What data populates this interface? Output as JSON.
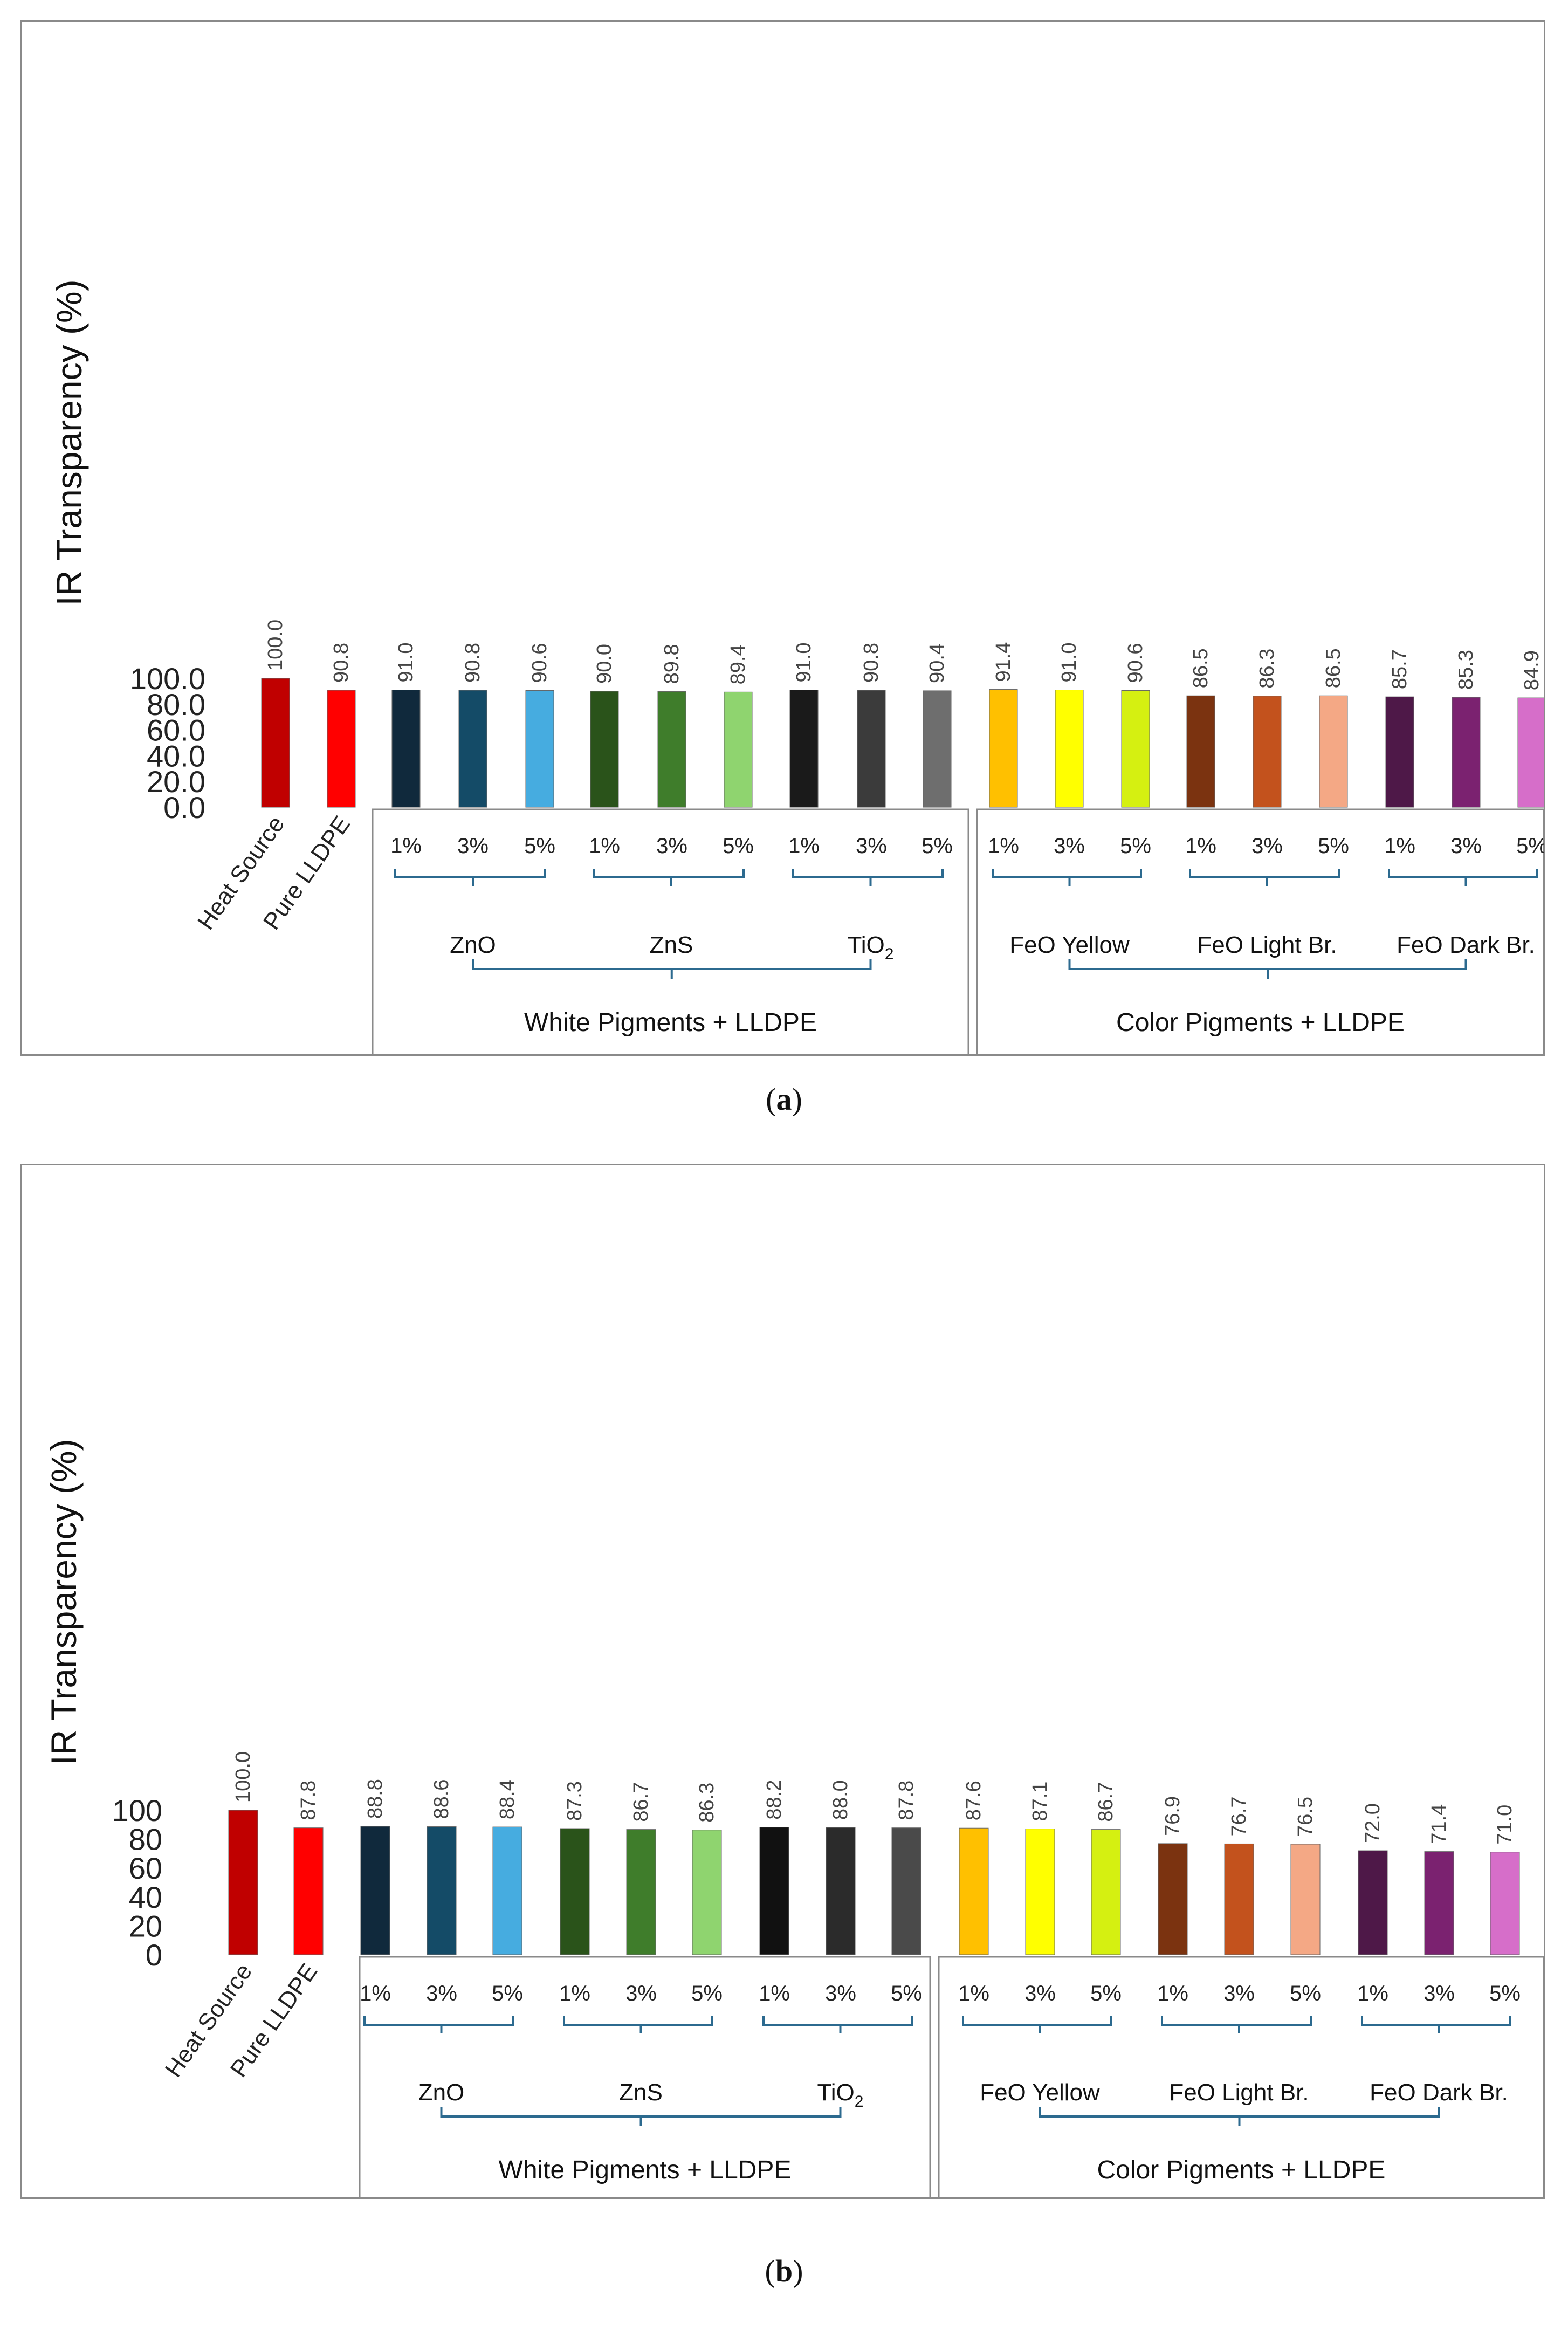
{
  "captions": {
    "a": "a",
    "b": "b"
  },
  "chart_data": [
    {
      "id": "a",
      "type": "bar",
      "ylabel": "IR Transparency (%)",
      "ylim": [
        0,
        100
      ],
      "yticks": [
        0,
        20,
        40,
        60,
        80,
        100
      ],
      "ytick_labels": [
        "0.0",
        "20.0",
        "40.0",
        "60.0",
        "80.0",
        "100.0"
      ],
      "value_format": "fixed1",
      "categories": [
        "Heat Source",
        "Pure LLDPE",
        "ZnO 1%",
        "ZnO 3%",
        "ZnO 5%",
        "ZnS 1%",
        "ZnS 3%",
        "ZnS 5%",
        "TiO2 1%",
        "TiO2 3%",
        "TiO2 5%",
        "FeO Yellow 1%",
        "FeO Yellow 3%",
        "FeO Yellow 5%",
        "FeO Light Br. 1%",
        "FeO Light Br. 3%",
        "FeO Light Br. 5%",
        "FeO Dark Br. 1%",
        "FeO Dark Br. 3%",
        "FeO Dark Br. 5%"
      ],
      "values": [
        100.0,
        90.8,
        91.0,
        90.8,
        90.6,
        90.0,
        89.8,
        89.4,
        91.0,
        90.8,
        90.4,
        91.4,
        91.0,
        90.6,
        86.5,
        86.3,
        86.5,
        85.7,
        85.3,
        84.9
      ],
      "colors": [
        "#c00000",
        "#ff0000",
        "#10293c",
        "#144b67",
        "#46ace0",
        "#2a531a",
        "#3f7d2b",
        "#8fd46f",
        "#1a1a1a",
        "#3b3b3b",
        "#6e6e6e",
        "#ffc000",
        "#ffff00",
        "#d5f011",
        "#7b3310",
        "#c3521d",
        "#f4a885",
        "#4e1848",
        "#7b2270",
        "#d66ec9"
      ],
      "rotated_labels": [
        "Heat Source",
        "Pure LLDPE"
      ],
      "percent_labels": [
        "1%",
        "3%",
        "5%"
      ],
      "groups": [
        {
          "name": "ZnO",
          "sup": "",
          "start": 2
        },
        {
          "name": "ZnS",
          "sup": "",
          "start": 5
        },
        {
          "name": "TiO",
          "sup": "2",
          "start": 8
        },
        {
          "name": "FeO Yellow",
          "sup": "",
          "start": 11
        },
        {
          "name": "FeO Light Br.",
          "sup": "",
          "start": 14
        },
        {
          "name": "FeO Dark Br.",
          "sup": "",
          "start": 17
        }
      ],
      "supergroups": [
        {
          "name": "White Pigments + LLDPE",
          "start": 2,
          "end": 10
        },
        {
          "name": "Color Pigments + LLDPE",
          "start": 11,
          "end": 19
        }
      ]
    },
    {
      "id": "b",
      "type": "bar",
      "ylabel": "IR Transparency (%)",
      "ylim": [
        0,
        100
      ],
      "yticks": [
        0,
        20,
        40,
        60,
        80,
        100
      ],
      "ytick_labels": [
        "0",
        "20",
        "40",
        "60",
        "80",
        "100"
      ],
      "value_format": "fixed1",
      "categories": [
        "Heat Source",
        "Pure LLDPE",
        "ZnO 1%",
        "ZnO 3%",
        "ZnO 5%",
        "ZnS 1%",
        "ZnS 3%",
        "ZnS 5%",
        "TiO2 1%",
        "TiO2 3%",
        "TiO2 5%",
        "FeO Yellow 1%",
        "FeO Yellow 3%",
        "FeO Yellow 5%",
        "FeO Light Br. 1%",
        "FeO Light Br. 3%",
        "FeO Light Br. 5%",
        "FeO Dark Br. 1%",
        "FeO Dark Br. 3%",
        "FeO Dark Br. 5%"
      ],
      "values": [
        100.0,
        87.8,
        88.8,
        88.6,
        88.4,
        87.3,
        86.7,
        86.3,
        88.2,
        88.0,
        87.8,
        87.6,
        87.1,
        86.7,
        76.9,
        76.7,
        76.5,
        72.0,
        71.4,
        71.0
      ],
      "colors": [
        "#c00000",
        "#ff0000",
        "#10293c",
        "#144b67",
        "#46ace0",
        "#2a531a",
        "#3f7d2b",
        "#8fd46f",
        "#111111",
        "#2b2b2b",
        "#4a4a4a",
        "#ffc000",
        "#ffff00",
        "#d5f011",
        "#7b3310",
        "#c3521d",
        "#f4a885",
        "#4e1848",
        "#7b2270",
        "#d66ec9"
      ],
      "rotated_labels": [
        "Heat Source",
        "Pure LLDPE"
      ],
      "percent_labels": [
        "1%",
        "3%",
        "5%"
      ],
      "groups": [
        {
          "name": "ZnO",
          "sup": "",
          "start": 2
        },
        {
          "name": "ZnS",
          "sup": "",
          "start": 5
        },
        {
          "name": "TiO",
          "sup": "2",
          "start": 8
        },
        {
          "name": "FeO Yellow",
          "sup": "",
          "start": 11
        },
        {
          "name": "FeO Light Br.",
          "sup": "",
          "start": 14
        },
        {
          "name": "FeO Dark Br.",
          "sup": "",
          "start": 17
        }
      ],
      "supergroups": [
        {
          "name": "White Pigments + LLDPE",
          "start": 2,
          "end": 10
        },
        {
          "name": "Color Pigments + LLDPE",
          "start": 11,
          "end": 19
        }
      ]
    }
  ]
}
